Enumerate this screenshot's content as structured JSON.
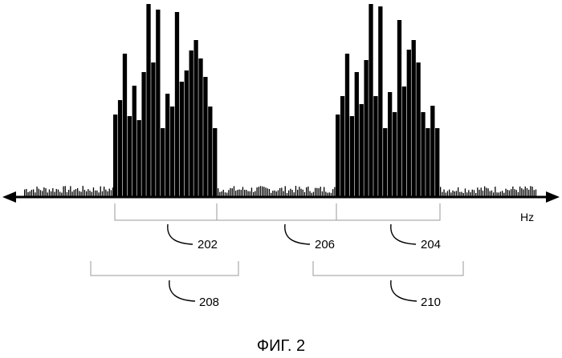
{
  "figure": {
    "caption": "ФИГ. 2",
    "axis_unit": "Hz",
    "colors": {
      "ink": "#000000",
      "bracket": "#9a9a9a",
      "background": "#ffffff"
    },
    "reference_numerals": {
      "band_202": "202",
      "gap_206": "206",
      "band_204": "204",
      "range_208": "208",
      "range_210": "210"
    }
  }
}
